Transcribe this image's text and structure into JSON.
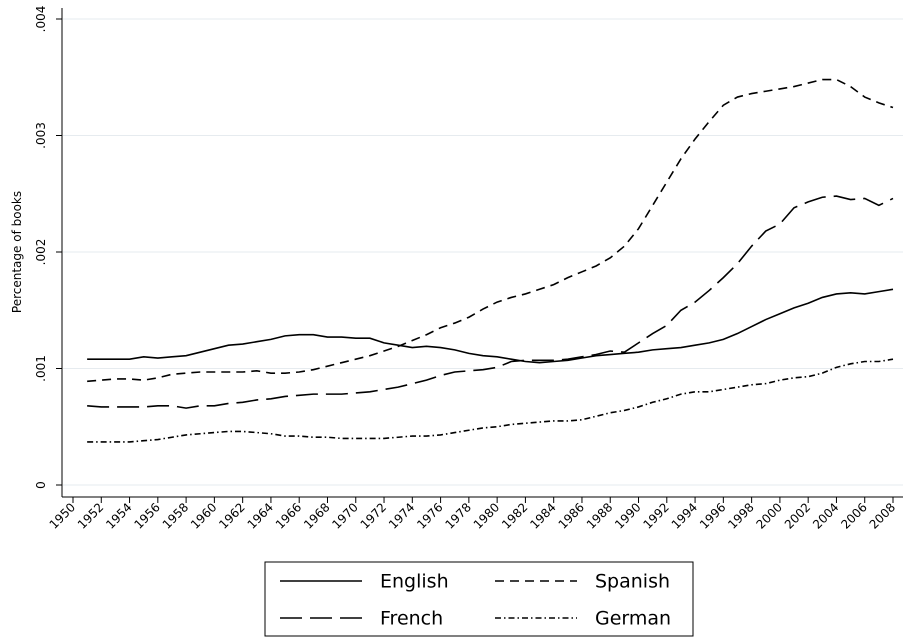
{
  "chart_data": {
    "type": "line",
    "y_label": "Percentage of books",
    "x": [
      1951,
      1952,
      1953,
      1954,
      1955,
      1956,
      1957,
      1958,
      1959,
      1960,
      1961,
      1962,
      1963,
      1964,
      1965,
      1966,
      1967,
      1968,
      1969,
      1970,
      1971,
      1972,
      1973,
      1974,
      1975,
      1976,
      1977,
      1978,
      1979,
      1980,
      1981,
      1982,
      1983,
      1984,
      1985,
      1986,
      1987,
      1988,
      1989,
      1990,
      1991,
      1992,
      1993,
      1994,
      1995,
      1996,
      1997,
      1998,
      1999,
      2000,
      2001,
      2002,
      2003,
      2004,
      2005,
      2006,
      2007,
      2008
    ],
    "xlim": [
      1950,
      2008
    ],
    "xticks": [
      1950,
      1952,
      1954,
      1956,
      1958,
      1960,
      1962,
      1964,
      1966,
      1968,
      1970,
      1972,
      1974,
      1976,
      1978,
      1980,
      1982,
      1984,
      1986,
      1988,
      1990,
      1992,
      1994,
      1996,
      1998,
      2000,
      2002,
      2004,
      2006,
      2008
    ],
    "ylim": [
      0,
      0.004
    ],
    "yticks": [
      0,
      {
        "value": 0.001,
        "label": ".001"
      },
      {
        "value": 0.002,
        "label": ".002"
      },
      {
        "value": 0.003,
        "label": ".003"
      },
      {
        "value": 0.004,
        "label": ".004"
      }
    ],
    "grid": true,
    "series": [
      {
        "name": "English",
        "color": "#000000",
        "linestyle": "solid",
        "values": [
          0.00108,
          0.00108,
          0.00108,
          0.00108,
          0.0011,
          0.00109,
          0.0011,
          0.00111,
          0.00114,
          0.00117,
          0.0012,
          0.00121,
          0.00123,
          0.00125,
          0.00128,
          0.00129,
          0.00129,
          0.00127,
          0.00127,
          0.00126,
          0.00126,
          0.00122,
          0.0012,
          0.00118,
          0.00119,
          0.00118,
          0.00116,
          0.00113,
          0.00111,
          0.0011,
          0.00108,
          0.00106,
          0.00105,
          0.00106,
          0.00107,
          0.00109,
          0.00111,
          0.00112,
          0.00113,
          0.00114,
          0.00116,
          0.00117,
          0.00118,
          0.0012,
          0.00122,
          0.00125,
          0.0013,
          0.00136,
          0.00142,
          0.00147,
          0.00152,
          0.00156,
          0.00161,
          0.00164,
          0.00165,
          0.00164,
          0.00166,
          0.00168
        ]
      },
      {
        "name": "Spanish",
        "color": "#000000",
        "linestyle": "dashed",
        "values": [
          0.00089,
          0.0009,
          0.00091,
          0.00091,
          0.0009,
          0.00092,
          0.00095,
          0.00096,
          0.00097,
          0.00097,
          0.00097,
          0.00097,
          0.00098,
          0.00096,
          0.00096,
          0.00097,
          0.00099,
          0.00102,
          0.00105,
          0.00108,
          0.00111,
          0.00115,
          0.00119,
          0.00124,
          0.00129,
          0.00135,
          0.00139,
          0.00144,
          0.00151,
          0.00157,
          0.00161,
          0.00164,
          0.00168,
          0.00172,
          0.00178,
          0.00183,
          0.00188,
          0.00195,
          0.00205,
          0.0022,
          0.0024,
          0.0026,
          0.0028,
          0.00297,
          0.00312,
          0.00326,
          0.00333,
          0.00336,
          0.00338,
          0.0034,
          0.00342,
          0.00345,
          0.00348,
          0.00348,
          0.00342,
          0.00333,
          0.00328,
          0.00324
        ]
      },
      {
        "name": "French",
        "color": "#000000",
        "linestyle": "longdash",
        "values": [
          0.00068,
          0.00067,
          0.00067,
          0.00067,
          0.00067,
          0.00068,
          0.00068,
          0.00066,
          0.00068,
          0.00068,
          0.0007,
          0.00071,
          0.00073,
          0.00074,
          0.00076,
          0.00077,
          0.00078,
          0.00078,
          0.00078,
          0.00079,
          0.0008,
          0.00082,
          0.00084,
          0.00087,
          0.0009,
          0.00094,
          0.00097,
          0.00098,
          0.00099,
          0.00101,
          0.00106,
          0.00107,
          0.00107,
          0.00107,
          0.00108,
          0.0011,
          0.00112,
          0.00115,
          0.00114,
          0.00122,
          0.0013,
          0.00137,
          0.0015,
          0.00157,
          0.00167,
          0.00178,
          0.0019,
          0.00205,
          0.00218,
          0.00224,
          0.00238,
          0.00243,
          0.00247,
          0.00248,
          0.00245,
          0.00246,
          0.0024,
          0.00246
        ]
      },
      {
        "name": "German",
        "color": "#000000",
        "linestyle": "dashdot",
        "values": [
          0.00037,
          0.00037,
          0.00037,
          0.00037,
          0.00038,
          0.00039,
          0.00041,
          0.00043,
          0.00044,
          0.00045,
          0.00046,
          0.00046,
          0.00045,
          0.00044,
          0.00042,
          0.00042,
          0.00041,
          0.00041,
          0.0004,
          0.0004,
          0.0004,
          0.0004,
          0.00041,
          0.00042,
          0.00042,
          0.00043,
          0.00045,
          0.00047,
          0.00049,
          0.0005,
          0.00052,
          0.00053,
          0.00054,
          0.00055,
          0.00055,
          0.00056,
          0.00059,
          0.00062,
          0.00064,
          0.00067,
          0.00071,
          0.00074,
          0.00078,
          0.0008,
          0.0008,
          0.00082,
          0.00084,
          0.00086,
          0.00087,
          0.0009,
          0.00092,
          0.00093,
          0.00096,
          0.00101,
          0.00104,
          0.00106,
          0.00106,
          0.00108
        ]
      }
    ]
  }
}
